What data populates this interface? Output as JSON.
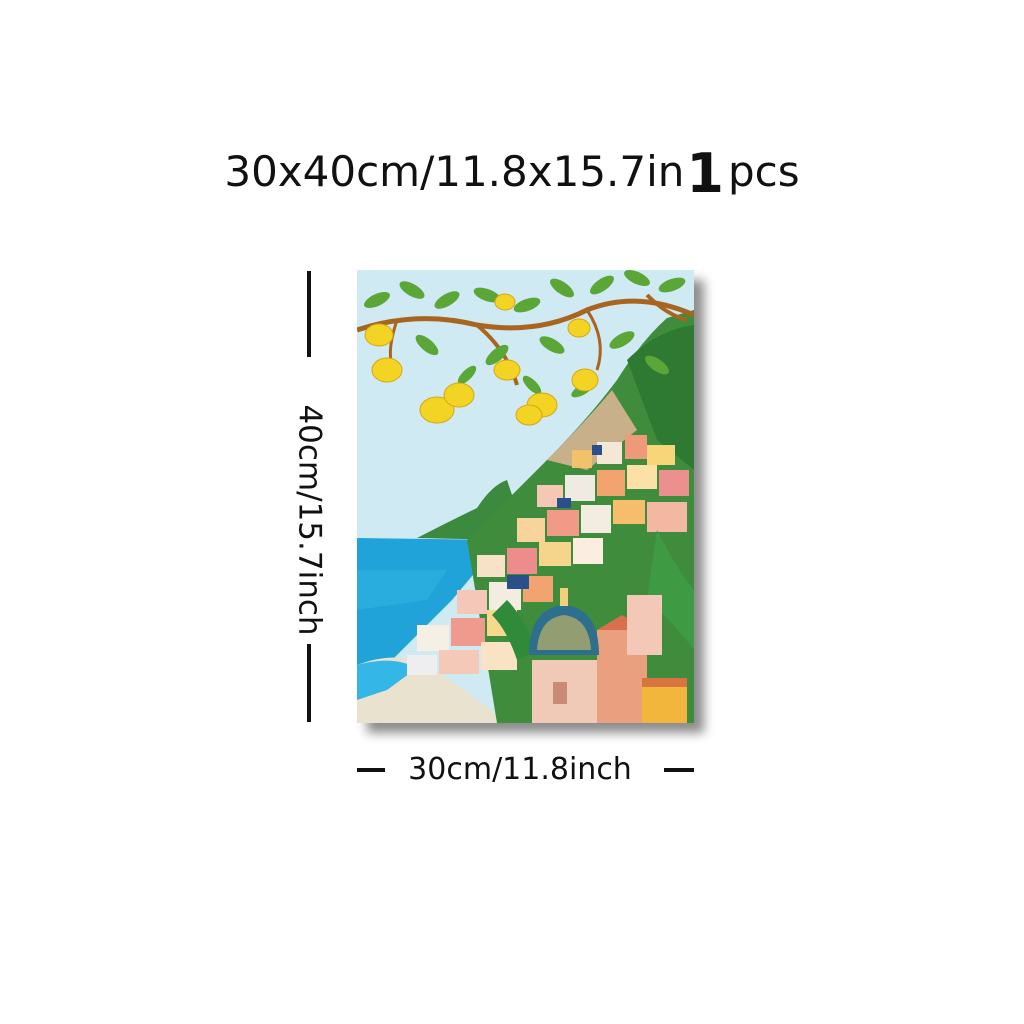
{
  "header": {
    "size_text": "30x40cm/11.8x15.7in",
    "quantity": "1",
    "unit": "pcs"
  },
  "dimensions": {
    "height_label": "40cm/15.7inch",
    "width_label": "30cm/11.8inch"
  },
  "artwork": {
    "subject": "painting",
    "colors": {
      "sky": "#cfeaf3",
      "sea": "#1fa3d8",
      "lemon": "#f3d424",
      "leaf": "#5aa637",
      "cliff": "#3f8d3c",
      "dome": "#2e6f8e"
    }
  }
}
